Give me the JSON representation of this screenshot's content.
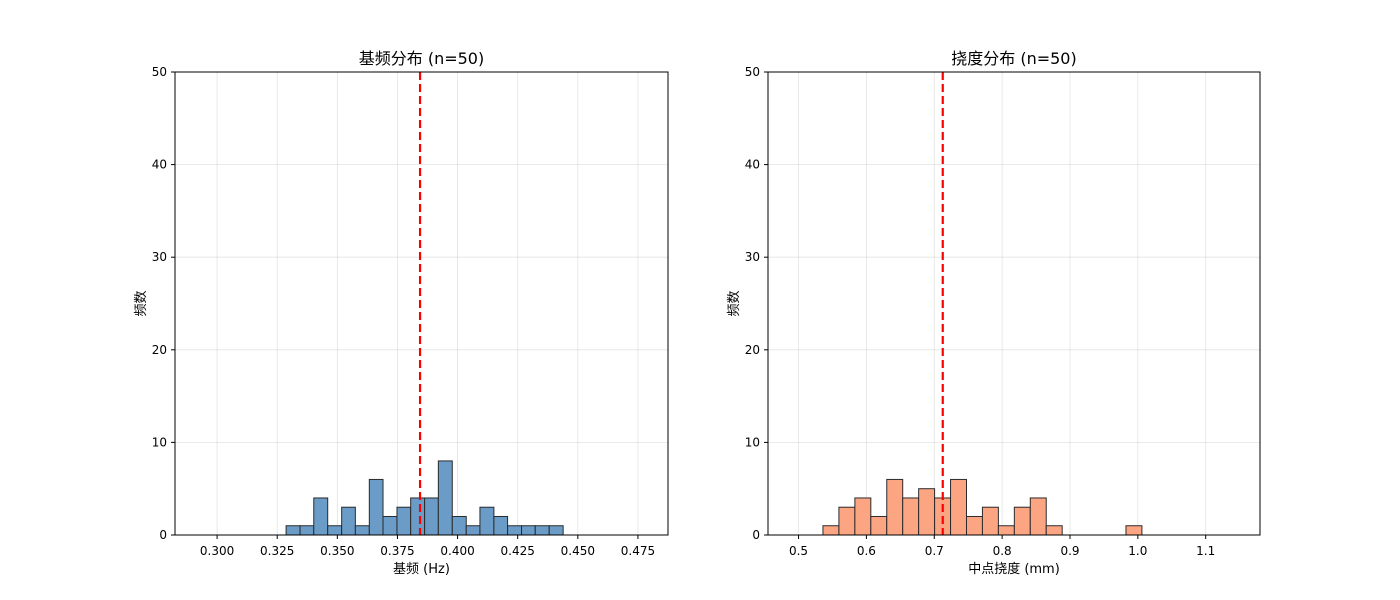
{
  "chart_data": [
    {
      "type": "bar",
      "title": "基频分布 (n=50)",
      "xlabel": "基频 (Hz)",
      "ylabel": "频数",
      "xlim": [
        0.2825,
        0.4875
      ],
      "ylim": [
        0,
        50
      ],
      "xticks": [
        "0.300",
        "0.325",
        "0.350",
        "0.375",
        "0.400",
        "0.425",
        "0.450",
        "0.475"
      ],
      "xtick_values": [
        0.3,
        0.325,
        0.35,
        0.375,
        0.4,
        0.425,
        0.45,
        0.475
      ],
      "yticks": [
        "0",
        "10",
        "20",
        "30",
        "40",
        "50"
      ],
      "ytick_values": [
        0,
        10,
        20,
        30,
        40,
        50
      ],
      "grid": true,
      "bin_edges": [
        0.3287,
        0.3345,
        0.3402,
        0.346,
        0.3518,
        0.3575,
        0.3633,
        0.369,
        0.3748,
        0.3805,
        0.3863,
        0.392,
        0.3978,
        0.4036,
        0.4093,
        0.4151,
        0.4208,
        0.4266,
        0.4323,
        0.4381,
        0.4439
      ],
      "values": [
        1,
        1,
        4,
        1,
        3,
        1,
        6,
        2,
        3,
        4,
        4,
        8,
        2,
        1,
        3,
        2,
        1,
        1,
        1,
        1
      ],
      "mean_line": 0.3844,
      "bar_color": "#6b9bc7",
      "line_color": "#ff0000"
    },
    {
      "type": "bar",
      "title": "挠度分布 (n=50)",
      "xlabel": "中点挠度 (mm)",
      "ylabel": "频数",
      "xlim": [
        0.455,
        1.18
      ],
      "ylim": [
        0,
        50
      ],
      "xticks": [
        "0.5",
        "0.6",
        "0.7",
        "0.8",
        "0.9",
        "1.0",
        "1.1"
      ],
      "xtick_values": [
        0.5,
        0.6,
        0.7,
        0.8,
        0.9,
        1.0,
        1.1
      ],
      "yticks": [
        "0",
        "10",
        "20",
        "30",
        "40",
        "50"
      ],
      "ytick_values": [
        0,
        10,
        20,
        30,
        40,
        50
      ],
      "grid": true,
      "bin_edges": [
        0.536,
        0.5595,
        0.583,
        0.6065,
        0.63,
        0.6535,
        0.677,
        0.7005,
        0.724,
        0.7475,
        0.771,
        0.7945,
        0.818,
        0.8415,
        0.865,
        0.8885,
        0.912,
        0.9355,
        0.959,
        0.9825,
        1.006
      ],
      "values": [
        1,
        3,
        4,
        2,
        6,
        4,
        5,
        4,
        6,
        2,
        3,
        1,
        3,
        4,
        1,
        0,
        0,
        0,
        0,
        1
      ],
      "mean_line": 0.7125,
      "bar_color": "#fca582",
      "line_color": "#ff0000"
    }
  ]
}
